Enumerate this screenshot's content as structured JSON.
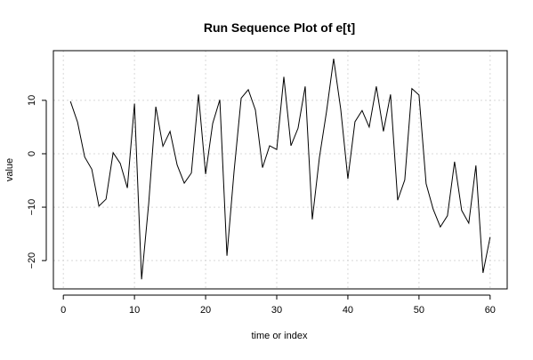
{
  "chart_data": {
    "type": "line",
    "title": "Run Sequence Plot of e[t]",
    "xlabel": "time or index",
    "ylabel": "value",
    "xlim": [
      -1.4,
      62.4
    ],
    "ylim": [
      -25.3,
      19.3
    ],
    "xticks": [
      0,
      10,
      20,
      30,
      40,
      50,
      60
    ],
    "yticks": [
      -20,
      -10,
      0,
      10
    ],
    "grid": true,
    "series": [
      {
        "values": [
          9.8,
          5.9,
          -0.6,
          -2.9,
          -9.8,
          -8.5,
          0.2,
          -1.8,
          -6.4,
          9.4,
          -23.5,
          -9.3,
          8.8,
          1.4,
          4.2,
          -2.1,
          -5.5,
          -3.6,
          11.1,
          -3.8,
          5.7,
          10.1,
          -19.1,
          -3.3,
          10.4,
          12.0,
          8.2,
          -2.6,
          1.5,
          0.8,
          14.4,
          1.5,
          4.8,
          12.6,
          -12.3,
          -0.7,
          7.9,
          17.8,
          8.3,
          -4.7,
          6.0,
          8.1,
          5.0,
          12.6,
          4.2,
          11.1,
          -8.7,
          -4.9,
          12.2,
          11.0,
          -5.6,
          -10.4,
          -13.7,
          -11.6,
          -1.5,
          -10.6,
          -13.0,
          -2.2,
          -22.3,
          -15.6
        ],
        "color": "#000000"
      }
    ]
  }
}
